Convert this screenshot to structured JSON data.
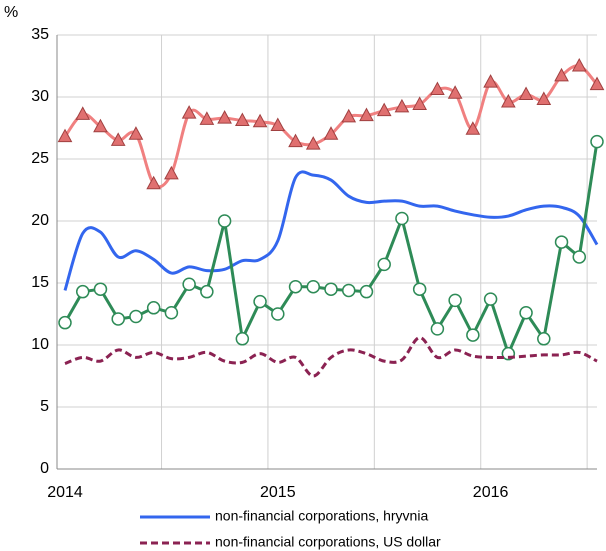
{
  "chart_data": {
    "type": "line",
    "y_label": "%",
    "categories": [
      "2014",
      null,
      null,
      null,
      null,
      null,
      null,
      null,
      null,
      null,
      null,
      null,
      "2015",
      null,
      null,
      null,
      null,
      null,
      null,
      null,
      null,
      null,
      null,
      null,
      "2016",
      null,
      null,
      null,
      null,
      null,
      null
    ],
    "ylim": [
      0,
      35
    ],
    "yticks": [
      0,
      5,
      10,
      15,
      20,
      25,
      30,
      35
    ],
    "grid": true,
    "legend": "bottom",
    "series": [
      {
        "color": "#f08080",
        "marker": "triangle",
        "marker_color": "#e07070",
        "smooth": true,
        "values": [
          26.8,
          28.6,
          27.6,
          26.5,
          27.0,
          23.0,
          23.8,
          28.7,
          28.2,
          28.3,
          28.1,
          28.0,
          27.7,
          26.4,
          26.2,
          27.0,
          28.4,
          28.5,
          28.9,
          29.2,
          29.4,
          30.6,
          30.3,
          27.4,
          31.2,
          29.6,
          30.2,
          29.8,
          31.7,
          32.5,
          31.0
        ]
      },
      {
        "name": "non-financial corporations, hryvnia",
        "color": "#3366ee",
        "smooth": true,
        "values": [
          14.4,
          19.0,
          19.1,
          17.1,
          17.6,
          16.9,
          15.8,
          16.3,
          16.0,
          16.1,
          16.8,
          16.9,
          18.4,
          23.5,
          23.7,
          23.3,
          22.0,
          21.5,
          21.6,
          21.6,
          21.2,
          21.2,
          20.8,
          20.5,
          20.3,
          20.4,
          20.9,
          21.2,
          21.1,
          20.4,
          18.1
        ]
      },
      {
        "color": "#2e8b57",
        "marker": "circle",
        "smooth": false,
        "values": [
          11.8,
          14.3,
          14.5,
          12.1,
          12.3,
          13.0,
          12.6,
          14.9,
          14.3,
          20.0,
          10.5,
          13.5,
          12.5,
          14.7,
          14.7,
          14.5,
          14.4,
          14.3,
          16.5,
          20.2,
          14.5,
          11.3,
          13.6,
          10.8,
          13.7,
          9.3,
          12.6,
          10.5,
          18.3,
          17.1,
          26.4
        ]
      },
      {
        "name": "non-financial corporations, US dollar",
        "color": "#8b2252",
        "dashed": true,
        "smooth": true,
        "values": [
          8.5,
          9.0,
          8.7,
          9.6,
          9.0,
          9.4,
          8.9,
          9.0,
          9.4,
          8.7,
          8.6,
          9.3,
          8.6,
          9.0,
          7.5,
          9.0,
          9.6,
          9.3,
          8.7,
          8.8,
          10.6,
          9.0,
          9.6,
          9.1,
          9.0,
          9.0,
          9.1,
          9.2,
          9.2,
          9.4,
          8.7
        ]
      }
    ]
  }
}
